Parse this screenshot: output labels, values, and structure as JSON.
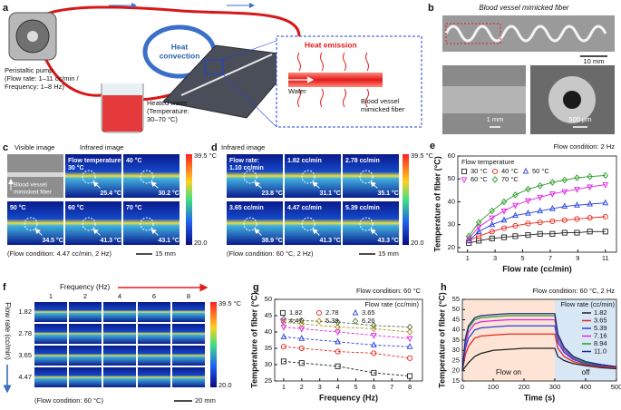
{
  "panel_letters": [
    "a",
    "b",
    "c",
    "d",
    "e",
    "f",
    "g",
    "h"
  ],
  "a": {
    "pump": [
      "Peristaltic pump",
      "(Flow rate: 1–11 cc/min /",
      "Frequency: 1–8 Hz)"
    ],
    "convection": [
      "Heat",
      "convection"
    ],
    "water_bath": [
      "Heated water",
      "(Temperature:",
      "30–70 °C)"
    ],
    "emission": "Heat emission",
    "water": "Water",
    "fiber": [
      "Blood vessel",
      "mimicked fiber"
    ]
  },
  "b": {
    "title": "Blood vessel mimicked fiber",
    "scales": [
      "10 mm",
      "1 mm",
      "500 μm"
    ]
  },
  "c": {
    "headers": [
      "Visible image",
      "Infrared image"
    ],
    "inset": [
      "Blood vessel",
      "mimicked fiber"
    ],
    "tiles": [
      {
        "label": [
          "Flow temperature:",
          "30 °C"
        ],
        "reading": "25.4 °C"
      },
      {
        "label": [
          "40 °C"
        ],
        "reading": "30.2 °C"
      },
      {
        "label": [
          "50 °C"
        ],
        "reading": "34.5 °C"
      },
      {
        "label": [
          "60 °C"
        ],
        "reading": "41.3 °C"
      },
      {
        "label": [
          "70 °C"
        ],
        "reading": "43.1 °C"
      }
    ],
    "condition": "(Flow condition: 4.47 cc/min, 2 Hz)",
    "scale": "15 mm",
    "colorbar": [
      "39.5 °C",
      "20.0"
    ]
  },
  "d": {
    "header": "Infrared image",
    "tiles": [
      {
        "label": [
          "Flow rate:",
          "1.10 cc/min"
        ],
        "reading": "23.8 °C"
      },
      {
        "label": [
          "1.82 cc/min"
        ],
        "reading": "31.1 °C"
      },
      {
        "label": [
          "2.78 cc/min"
        ],
        "reading": "35.1 °C"
      },
      {
        "label": [
          "3.65 cc/min"
        ],
        "reading": "38.9 °C"
      },
      {
        "label": [
          "4.47 cc/min"
        ],
        "reading": "41.3 °C"
      },
      {
        "label": [
          "5.39 cc/min"
        ],
        "reading": "43.3 °C"
      }
    ],
    "condition": "(Flow condition: 60 °C, 2 Hz)",
    "scale": "15 mm",
    "colorbar": [
      "39.5 °C",
      "20.0"
    ]
  },
  "f": {
    "col_title": "Frequency (Hz)",
    "cols": [
      "1",
      "2",
      "4",
      "6",
      "8"
    ],
    "row_title": "Flow rate (cc/min)",
    "rows": [
      "1.82",
      "2.78",
      "3.65",
      "4.47"
    ],
    "condition": "(Flow condition: 60 °C)",
    "scale": "20 mm",
    "colorbar": [
      "39.5 °C",
      "20.0"
    ]
  },
  "chart_data": [
    {
      "type": "line",
      "subtitle": "Flow condition: 2 Hz",
      "legend_title": "Flow temperature",
      "xlabel": "Flow rate (cc/min)",
      "ylabel": "Temperature of fiber (°C)",
      "line_style": "solid",
      "x": [
        1.1,
        1.82,
        2.78,
        3.65,
        4.47,
        5.39,
        6.26,
        7.16,
        8.04,
        8.94,
        9.87,
        11.0
      ],
      "xlim": [
        0.3,
        11.8
      ],
      "xticks": [
        1,
        3,
        5,
        7,
        9,
        11
      ],
      "ylim": [
        18,
        60
      ],
      "yticks": [
        20,
        30,
        40,
        50,
        60
      ],
      "series": [
        {
          "name": "30 °C",
          "color": "#222222",
          "marker": "square",
          "values": [
            22,
            23,
            24,
            24.5,
            25,
            25.5,
            26,
            26,
            26.5,
            26.5,
            27,
            27
          ]
        },
        {
          "name": "40 °C",
          "color": "#e8261c",
          "marker": "circle",
          "values": [
            23,
            25,
            27,
            28.5,
            29.5,
            30.5,
            31,
            31.5,
            32,
            32.5,
            33,
            33.5
          ]
        },
        {
          "name": "50 °C",
          "color": "#2540e0",
          "marker": "triangle-up",
          "values": [
            23,
            27,
            30,
            32,
            34,
            35,
            36,
            37,
            38,
            38.5,
            39,
            39.5
          ]
        },
        {
          "name": "60 °C",
          "color": "#e020e0",
          "marker": "triangle-down",
          "values": [
            24,
            29,
            33,
            36,
            38.5,
            40.5,
            42,
            43.5,
            44.5,
            45.5,
            46.5,
            47.5
          ]
        },
        {
          "name": "70 °C",
          "color": "#2a9a2a",
          "marker": "diamond",
          "values": [
            25,
            31,
            36,
            40,
            43,
            45.5,
            47,
            48.5,
            49.5,
            50.5,
            51,
            51.5
          ]
        }
      ]
    },
    {
      "type": "line",
      "subtitle": "Flow condition: 60 °C",
      "legend_title": "Flow rate (cc/min)",
      "xlabel": "Frequency (Hz)",
      "ylabel": "Temperature of fiber (°C)",
      "line_style": "dashed",
      "x": [
        1,
        2,
        4,
        6,
        8
      ],
      "xlim": [
        0.5,
        8.7
      ],
      "xticks": [
        1,
        2,
        3,
        4,
        5,
        6,
        7,
        8
      ],
      "ylim": [
        25,
        50
      ],
      "yticks": [
        25,
        30,
        35,
        40,
        45,
        50
      ],
      "series": [
        {
          "name": "1.82",
          "color": "#222222",
          "marker": "square",
          "values": [
            31,
            30.5,
            29.5,
            27.5,
            26.5
          ]
        },
        {
          "name": "2.78",
          "color": "#e8261c",
          "marker": "circle",
          "values": [
            35.5,
            35,
            34,
            33.5,
            32
          ]
        },
        {
          "name": "3.65",
          "color": "#2540e0",
          "marker": "triangle-up",
          "values": [
            38.5,
            38,
            37,
            36,
            35.5
          ]
        },
        {
          "name": "4.47",
          "color": "#e020e0",
          "marker": "triangle-down",
          "values": [
            41.5,
            41,
            40,
            39,
            38
          ]
        },
        {
          "name": "5.39",
          "color": "#b08a1a",
          "marker": "diamond",
          "values": [
            43,
            42.5,
            41.5,
            41,
            40
          ]
        },
        {
          "name": "6.26",
          "color": "#55703a",
          "marker": "diamond",
          "values": [
            44,
            43.5,
            43,
            42,
            41.5
          ]
        }
      ]
    },
    {
      "type": "line",
      "subtitle": "Flow condition: 60 °C, 2 Hz",
      "legend_title": "Flow rate (cc/min)",
      "xlabel": "Time (s)",
      "ylabel": "Temperature of fiber (°C)",
      "line_style": "solid",
      "x": [
        0,
        10,
        20,
        40,
        60,
        100,
        150,
        200,
        250,
        300,
        310,
        330,
        360,
        400,
        450,
        500
      ],
      "xlim": [
        0,
        500
      ],
      "xticks": [
        0,
        100,
        200,
        300,
        400,
        500
      ],
      "ylim": [
        15,
        55
      ],
      "yticks": [
        15,
        20,
        25,
        30,
        35,
        40,
        45,
        50,
        55
      ],
      "regions": [
        {
          "label": "Flow on",
          "range": [
            0,
            300
          ],
          "color": "#fde4d4"
        },
        {
          "label": "off",
          "range": [
            300,
            500
          ],
          "color": "#d8e7f5"
        }
      ],
      "series": [
        {
          "name": "1.82",
          "color": "#222222",
          "values": [
            20,
            22,
            24,
            27,
            28.5,
            30,
            30.5,
            31,
            31,
            31,
            27,
            25,
            23.5,
            22.5,
            21.5,
            21
          ]
        },
        {
          "name": "3.65",
          "color": "#e8261c",
          "values": [
            20,
            28,
            32,
            36,
            37,
            37.5,
            38,
            38,
            38,
            38,
            31,
            27,
            24.5,
            23,
            22,
            21.5
          ]
        },
        {
          "name": "5.39",
          "color": "#2540e0",
          "values": [
            20,
            31,
            36,
            40,
            41,
            41.5,
            42,
            42,
            42,
            42,
            34,
            29,
            25.5,
            23.5,
            22.5,
            22
          ]
        },
        {
          "name": "7.16",
          "color": "#e020e0",
          "values": [
            20,
            33,
            39,
            43,
            44,
            44.5,
            45,
            45,
            45,
            45,
            36,
            30,
            26,
            24,
            23,
            22
          ]
        },
        {
          "name": "8.94",
          "color": "#2a9a2a",
          "values": [
            20,
            35,
            41,
            45,
            46,
            46.5,
            47,
            47,
            47,
            47,
            37,
            31,
            26.5,
            24,
            23,
            22
          ]
        },
        {
          "name": "11.0",
          "color": "#1a2a8a",
          "values": [
            20,
            36,
            42,
            46,
            47,
            47.5,
            48,
            48,
            48,
            48,
            38,
            31.5,
            27,
            24.5,
            23,
            22
          ]
        }
      ]
    }
  ]
}
